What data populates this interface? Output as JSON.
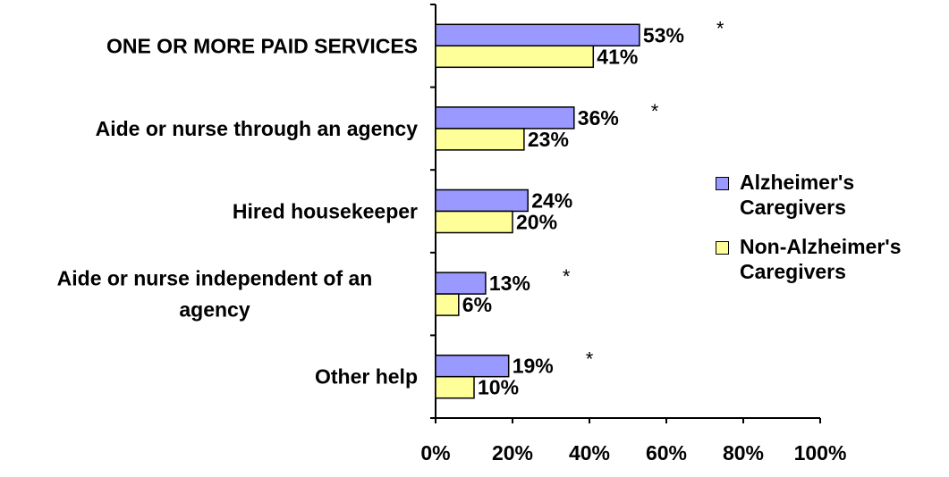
{
  "chart_data": {
    "type": "bar",
    "orientation": "horizontal",
    "categories": [
      "ONE OR MORE PAID SERVICES",
      "Aide or nurse through an agency",
      "Hired housekeeper",
      "Aide or nurse independent of an agency",
      "Other help"
    ],
    "series": [
      {
        "name": "Alzheimer's Caregivers",
        "color": "#9999ff",
        "values": [
          53,
          36,
          24,
          13,
          19
        ],
        "labels": [
          "53%",
          "36%",
          "24%",
          "13%",
          "19%"
        ]
      },
      {
        "name": "Non-Alzheimer's Caregivers",
        "color": "#ffff99",
        "values": [
          41,
          23,
          20,
          6,
          10
        ],
        "labels": [
          "41%",
          "23%",
          "20%",
          "6%",
          "10%"
        ]
      }
    ],
    "significance_markers": [
      "*",
      "*",
      "",
      "*",
      "*"
    ],
    "xlim": [
      0,
      100
    ],
    "xticks": [
      "0%",
      "20%",
      "40%",
      "60%",
      "80%",
      "100%"
    ],
    "legend_position": "right",
    "grid": false
  }
}
